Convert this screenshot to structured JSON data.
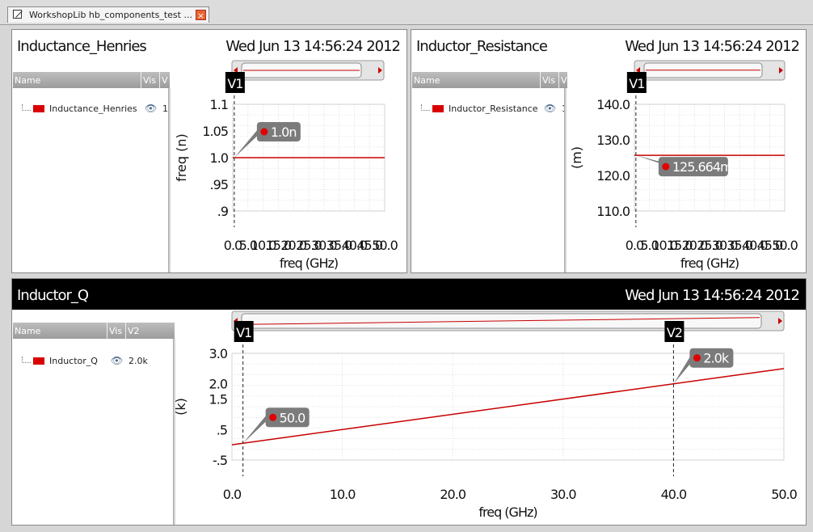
{
  "window": {
    "tab_title": "WorkshopLib hb_components_test ...",
    "close_glyph": "×"
  },
  "legend_columns": {
    "name": "Name",
    "vis": "Vis",
    "v": "V",
    "v2": "V2"
  },
  "panes": {
    "inductance": {
      "title": "Inductance_Henries",
      "date": "Wed Jun 13 14:56:24 2012",
      "signal": "Inductance_Henries",
      "value": "1",
      "marker": "V1",
      "callout": "1.0n"
    },
    "resistance": {
      "title": "Inductor_Resistance",
      "date": "Wed Jun 13 14:56:24 2012",
      "signal": "Inductor_Resistance",
      "value": "1",
      "marker": "V1",
      "callout": "125.664m"
    },
    "q": {
      "title": "Inductor_Q",
      "date": "Wed Jun 13 14:56:24 2012",
      "signal": "Inductor_Q",
      "value": "2.0k",
      "marker1": "V1",
      "marker2": "V2",
      "callout1": "50.0",
      "callout2": "2.0k"
    }
  },
  "colors": {
    "trace": "#c80000",
    "callout": "#7b7b7b",
    "marker_bg": "#000000"
  },
  "chart_data": [
    {
      "type": "line",
      "title": "Inductance_Henries",
      "xlabel": "freq (GHz)",
      "ylabel": "freq (n)",
      "xlim": [
        0,
        50
      ],
      "ylim": [
        0.9,
        1.1
      ],
      "xticks": [
        "0.0",
        "10.0",
        "20.0",
        "30.0",
        "40.0",
        "50.0",
        "5.0",
        "15.0",
        "25.0",
        "35.0",
        "45.0"
      ],
      "xtick_values": [
        0,
        10,
        20,
        30,
        40,
        50,
        5,
        15,
        25,
        35,
        45
      ],
      "yticks": [
        "1.1",
        "1.05",
        "1.0",
        ".95",
        ".9"
      ],
      "ytick_values": [
        1.1,
        1.05,
        1.0,
        0.95,
        0.9
      ],
      "series": [
        {
          "name": "Inductance_Henries",
          "x": [
            0,
            50
          ],
          "y": [
            1.0,
            1.0
          ]
        }
      ],
      "markers": [
        {
          "label": "V1",
          "x": 0.5
        }
      ],
      "annotations": [
        {
          "text": "1.0n",
          "x": 0.5,
          "y": 1.0
        }
      ]
    },
    {
      "type": "line",
      "title": "Inductor_Resistance",
      "xlabel": "freq (GHz)",
      "ylabel": "(m)",
      "xlim": [
        0,
        50
      ],
      "ylim": [
        110,
        140
      ],
      "xticks": [
        "0.0",
        "10.0",
        "20.0",
        "30.0",
        "40.0",
        "50.0",
        "5.0",
        "15.0",
        "25.0",
        "35.0",
        "45.0"
      ],
      "xtick_values": [
        0,
        10,
        20,
        30,
        40,
        50,
        5,
        15,
        25,
        35,
        45
      ],
      "yticks": [
        "140.0",
        "130.0",
        "120.0",
        "110.0"
      ],
      "ytick_values": [
        140,
        130,
        120,
        110
      ],
      "series": [
        {
          "name": "Inductor_Resistance",
          "x": [
            0,
            50
          ],
          "y": [
            125.664,
            125.664
          ]
        }
      ],
      "markers": [
        {
          "label": "V1",
          "x": 0.5
        }
      ],
      "annotations": [
        {
          "text": "125.664m",
          "x": 0.5,
          "y": 125.664
        }
      ]
    },
    {
      "type": "line",
      "title": "Inductor_Q",
      "xlabel": "freq (GHz)",
      "ylabel": "(k)",
      "xlim": [
        0,
        50
      ],
      "ylim": [
        -0.5,
        3.0
      ],
      "xticks": [
        "0.0",
        "10.0",
        "20.0",
        "30.0",
        "40.0",
        "50.0"
      ],
      "xtick_values": [
        0,
        10,
        20,
        30,
        40,
        50
      ],
      "yticks": [
        "3.0",
        "2.0",
        "1.5",
        ".5",
        "-.5"
      ],
      "ytick_values": [
        3.0,
        2.0,
        1.5,
        0.5,
        -0.5
      ],
      "series": [
        {
          "name": "Inductor_Q",
          "x": [
            0,
            50
          ],
          "y": [
            0.0,
            2.5
          ]
        }
      ],
      "markers": [
        {
          "label": "V1",
          "x": 1.0
        },
        {
          "label": "V2",
          "x": 40.0
        }
      ],
      "annotations": [
        {
          "text": "50.0",
          "x": 1.0,
          "y": 0.05
        },
        {
          "text": "2.0k",
          "x": 40.0,
          "y": 2.0
        }
      ]
    }
  ]
}
